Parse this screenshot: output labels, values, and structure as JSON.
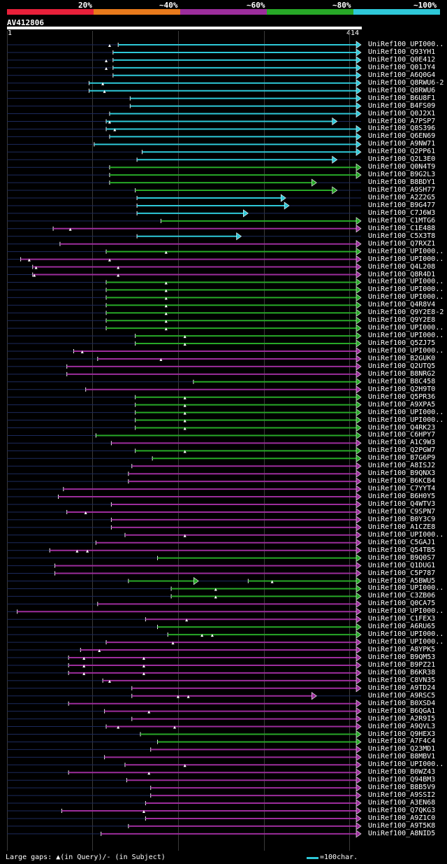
{
  "legend": {
    "labels": [
      "20%",
      "~40%",
      "~60%",
      "~80%",
      "~100%"
    ],
    "colors": [
      "#e8203a",
      "#e87a1c",
      "#9c2d9c",
      "#27a827",
      "#2ec8d8"
    ]
  },
  "query": {
    "name": "AV412806",
    "start": "1",
    "end": "414"
  },
  "footer": {
    "gaps": "Large gaps: ▲(in Query)/- (in Subject)",
    "scale": "=100char."
  },
  "hits": [
    {
      "label": "UniRef100_UPI000..",
      "start": 130,
      "end": 414,
      "color": "#2ec8d8",
      "arrow": true,
      "gaps": [
        120
      ]
    },
    {
      "label": "UniRef100_Q93YH1",
      "start": 124,
      "end": 414,
      "color": "#2ec8d8",
      "arrow": true,
      "gaps": []
    },
    {
      "label": "UniRef100_Q0E412",
      "start": 124,
      "end": 414,
      "color": "#2ec8d8",
      "arrow": true,
      "gaps": [
        116
      ]
    },
    {
      "label": "UniRef100_Q01JY4",
      "start": 124,
      "end": 414,
      "color": "#2ec8d8",
      "arrow": true,
      "gaps": [
        116
      ]
    },
    {
      "label": "UniRef100_A6Q0G4",
      "start": 124,
      "end": 414,
      "color": "#2ec8d8",
      "arrow": true,
      "gaps": []
    },
    {
      "label": "UniRef100_Q8RWU6-2",
      "start": 96,
      "end": 414,
      "color": "#2ec8d8",
      "arrow": true,
      "gaps": [
        112
      ]
    },
    {
      "label": "UniRef100_Q8RWU6",
      "start": 96,
      "end": 414,
      "color": "#2ec8d8",
      "arrow": true,
      "gaps": [
        114
      ]
    },
    {
      "label": "UniRef100_B6U8F1",
      "start": 144,
      "end": 414,
      "color": "#2ec8d8",
      "arrow": true,
      "gaps": []
    },
    {
      "label": "UniRef100_B4FS09",
      "start": 144,
      "end": 414,
      "color": "#2ec8d8",
      "arrow": true,
      "gaps": []
    },
    {
      "label": "UniRef100_Q0J2X1",
      "start": 120,
      "end": 414,
      "color": "#2ec8d8",
      "arrow": true,
      "gaps": []
    },
    {
      "label": "UniRef100_A7PSP7",
      "start": 116,
      "end": 386,
      "color": "#2ec8d8",
      "arrow": true,
      "gaps": [
        120
      ]
    },
    {
      "label": "UniRef100_Q8S396",
      "start": 116,
      "end": 414,
      "color": "#2ec8d8",
      "arrow": true,
      "gaps": [
        126
      ]
    },
    {
      "label": "UniRef100_Q6EN69",
      "start": 120,
      "end": 414,
      "color": "#2ec8d8",
      "arrow": true,
      "gaps": []
    },
    {
      "label": "UniRef100_A9NW71",
      "start": 102,
      "end": 414,
      "color": "#2ec8d8",
      "arrow": true,
      "gaps": []
    },
    {
      "label": "UniRef100_Q2PP61",
      "start": 158,
      "end": 414,
      "color": "#2ec8d8",
      "arrow": true,
      "gaps": []
    },
    {
      "label": "UniRef100_Q2L3E0",
      "start": 152,
      "end": 386,
      "color": "#2ec8d8",
      "arrow": true,
      "gaps": []
    },
    {
      "label": "UniRef100_Q0N4T9",
      "start": 120,
      "end": 414,
      "color": "#27a827",
      "arrow": true,
      "gaps": []
    },
    {
      "label": "UniRef100_B9G2L3",
      "start": 120,
      "end": 414,
      "color": "#27a827",
      "arrow": true,
      "gaps": []
    },
    {
      "label": "UniRef100_B8BDY1",
      "start": 120,
      "end": 362,
      "color": "#27a827",
      "arrow": true,
      "gaps": []
    },
    {
      "label": "UniRef100_A9SH77",
      "start": 150,
      "end": 386,
      "color": "#27a827",
      "arrow": true,
      "gaps": []
    },
    {
      "label": "UniRef100_A2Z2G5",
      "start": 152,
      "end": 326,
      "color": "#2ec8d8",
      "arrow": true,
      "gaps": []
    },
    {
      "label": "UniRef100_B9G477",
      "start": 152,
      "end": 330,
      "color": "#2ec8d8",
      "arrow": true,
      "gaps": []
    },
    {
      "label": "UniRef100_C7J6W3",
      "start": 152,
      "end": 282,
      "color": "#2ec8d8",
      "arrow": true,
      "gaps": []
    },
    {
      "label": "UniRef100_C1MTG6",
      "start": 180,
      "end": 414,
      "color": "#27a827",
      "arrow": true,
      "gaps": []
    },
    {
      "label": "UniRef100_C1E488",
      "start": 54,
      "end": 414,
      "color": "#9c2d9c",
      "arrow": true,
      "gaps": [
        74
      ]
    },
    {
      "label": "UniRef100_C5X3T8",
      "start": 152,
      "end": 274,
      "color": "#2ec8d8",
      "arrow": true,
      "gaps": []
    },
    {
      "label": "UniRef100_Q7RXZ1",
      "start": 62,
      "end": 414,
      "color": "#9c2d9c",
      "arrow": true,
      "gaps": []
    },
    {
      "label": "UniRef100_UPI000..",
      "start": 116,
      "end": 414,
      "color": "#27a827",
      "arrow": true,
      "gaps": [
        186
      ]
    },
    {
      "label": "UniRef100_UPI000..",
      "start": 16,
      "end": 414,
      "color": "#9c2d9c",
      "arrow": true,
      "gaps": [
        26,
        120
      ]
    },
    {
      "label": "UniRef100_Q4L208",
      "start": 30,
      "end": 414,
      "color": "#9c2d9c",
      "arrow": true,
      "gaps": [
        34,
        130
      ]
    },
    {
      "label": "UniRef100_Q8R4D1",
      "start": 30,
      "end": 414,
      "color": "#9c2d9c",
      "arrow": true,
      "gaps": [
        32,
        130
      ]
    },
    {
      "label": "UniRef100_UPI000..",
      "start": 116,
      "end": 414,
      "color": "#27a827",
      "arrow": true,
      "gaps": [
        186
      ]
    },
    {
      "label": "UniRef100_UPI000..",
      "start": 116,
      "end": 414,
      "color": "#27a827",
      "arrow": true,
      "gaps": [
        186
      ]
    },
    {
      "label": "UniRef100_UPI000..",
      "start": 116,
      "end": 414,
      "color": "#27a827",
      "arrow": true,
      "gaps": [
        186
      ]
    },
    {
      "label": "UniRef100_Q4R8V4",
      "start": 116,
      "end": 414,
      "color": "#27a827",
      "arrow": true,
      "gaps": [
        186
      ]
    },
    {
      "label": "UniRef100_Q9Y2E8-2",
      "start": 116,
      "end": 414,
      "color": "#27a827",
      "arrow": true,
      "gaps": [
        186
      ]
    },
    {
      "label": "UniRef100_Q9Y2E8",
      "start": 116,
      "end": 414,
      "color": "#27a827",
      "arrow": true,
      "gaps": [
        186
      ]
    },
    {
      "label": "UniRef100_UPI000..",
      "start": 116,
      "end": 414,
      "color": "#27a827",
      "arrow": true,
      "gaps": [
        186
      ]
    },
    {
      "label": "UniRef100_UPI000..",
      "start": 150,
      "end": 414,
      "color": "#27a827",
      "arrow": true,
      "gaps": [
        208
      ]
    },
    {
      "label": "UniRef100_Q5ZJ75",
      "start": 150,
      "end": 414,
      "color": "#27a827",
      "arrow": true,
      "gaps": [
        208
      ]
    },
    {
      "label": "UniRef100_UPI000..",
      "start": 78,
      "end": 414,
      "color": "#9c2d9c",
      "arrow": true,
      "gaps": [
        88
      ]
    },
    {
      "label": "UniRef100_B2GUK0",
      "start": 106,
      "end": 414,
      "color": "#9c2d9c",
      "arrow": true,
      "gaps": [
        180
      ]
    },
    {
      "label": "UniRef100_Q2UTQ5",
      "start": 70,
      "end": 414,
      "color": "#9c2d9c",
      "arrow": true,
      "gaps": []
    },
    {
      "label": "UniRef100_B8NRG2",
      "start": 70,
      "end": 414,
      "color": "#9c2d9c",
      "arrow": true,
      "gaps": []
    },
    {
      "label": "UniRef100_B8C458",
      "start": 218,
      "end": 414,
      "color": "#27a827",
      "arrow": true,
      "gaps": []
    },
    {
      "label": "UniRef100_Q2H9T0",
      "start": 92,
      "end": 414,
      "color": "#9c2d9c",
      "arrow": true,
      "gaps": []
    },
    {
      "label": "UniRef100_Q5PR36",
      "start": 150,
      "end": 414,
      "color": "#27a827",
      "arrow": true,
      "gaps": [
        208
      ]
    },
    {
      "label": "UniRef100_A9XPA5",
      "start": 150,
      "end": 414,
      "color": "#27a827",
      "arrow": true,
      "gaps": [
        208
      ]
    },
    {
      "label": "UniRef100_UPI000..",
      "start": 150,
      "end": 414,
      "color": "#27a827",
      "arrow": true,
      "gaps": [
        208
      ]
    },
    {
      "label": "UniRef100_UPI000..",
      "start": 150,
      "end": 414,
      "color": "#27a827",
      "arrow": true,
      "gaps": [
        208
      ]
    },
    {
      "label": "UniRef100_Q4RK23",
      "start": 150,
      "end": 414,
      "color": "#27a827",
      "arrow": true,
      "gaps": [
        208
      ]
    },
    {
      "label": "UniRef100_C6HPY7",
      "start": 104,
      "end": 414,
      "color": "#27a827",
      "arrow": true,
      "gaps": []
    },
    {
      "label": "UniRef100_A1C9W3",
      "start": 122,
      "end": 414,
      "color": "#9c2d9c",
      "arrow": true,
      "gaps": []
    },
    {
      "label": "UniRef100_Q2PGW7",
      "start": 150,
      "end": 414,
      "color": "#27a827",
      "arrow": true,
      "gaps": [
        208
      ]
    },
    {
      "label": "UniRef100_B7G6P9",
      "start": 170,
      "end": 414,
      "color": "#27a827",
      "arrow": true,
      "gaps": []
    },
    {
      "label": "UniRef100_A8ISJ2",
      "start": 146,
      "end": 414,
      "color": "#9c2d9c",
      "arrow": true,
      "gaps": []
    },
    {
      "label": "UniRef100_B9QNX3",
      "start": 142,
      "end": 414,
      "color": "#9c2d9c",
      "arrow": true,
      "gaps": []
    },
    {
      "label": "UniRef100_B6KCB4",
      "start": 142,
      "end": 414,
      "color": "#9c2d9c",
      "arrow": true,
      "gaps": []
    },
    {
      "label": "UniRef100_C7YYT4",
      "start": 66,
      "end": 414,
      "color": "#9c2d9c",
      "arrow": true,
      "gaps": []
    },
    {
      "label": "UniRef100_B6H0Y5",
      "start": 60,
      "end": 414,
      "color": "#9c2d9c",
      "arrow": true,
      "gaps": []
    },
    {
      "label": "UniRef100_Q4WTV3",
      "start": 122,
      "end": 414,
      "color": "#9c2d9c",
      "arrow": true,
      "gaps": []
    },
    {
      "label": "UniRef100_C9SPN7",
      "start": 70,
      "end": 414,
      "color": "#9c2d9c",
      "arrow": true,
      "gaps": [
        92
      ]
    },
    {
      "label": "UniRef100_B0Y3C9",
      "start": 122,
      "end": 414,
      "color": "#9c2d9c",
      "arrow": true,
      "gaps": []
    },
    {
      "label": "UniRef100_A1CZE8",
      "start": 122,
      "end": 414,
      "color": "#9c2d9c",
      "arrow": true,
      "gaps": []
    },
    {
      "label": "UniRef100_UPI000..",
      "start": 138,
      "end": 414,
      "color": "#9c2d9c",
      "arrow": true,
      "gaps": [
        208
      ]
    },
    {
      "label": "UniRef100_C5GAJ1",
      "start": 104,
      "end": 414,
      "color": "#9c2d9c",
      "arrow": true,
      "gaps": []
    },
    {
      "label": "UniRef100_Q54TB5",
      "start": 50,
      "end": 414,
      "color": "#9c2d9c",
      "arrow": true,
      "gaps": [
        82,
        94
      ]
    },
    {
      "label": "UniRef100_B9Q0S7",
      "start": 176,
      "end": 414,
      "color": "#27a827",
      "arrow": true,
      "gaps": []
    },
    {
      "label": "UniRef100_Q1DUG1",
      "start": 56,
      "end": 414,
      "color": "#9c2d9c",
      "arrow": true,
      "gaps": []
    },
    {
      "label": "UniRef100_C5P787",
      "start": 56,
      "end": 414,
      "color": "#9c2d9c",
      "arrow": true,
      "gaps": []
    },
    {
      "label": "UniRef100_A5BWU5",
      "start": 142,
      "end": 224,
      "color": "#27a827",
      "arrow": true,
      "gaps": [
        310
      ],
      "seg2": [
        282,
        414
      ]
    },
    {
      "label": "UniRef100_UPI000..",
      "start": 192,
      "end": 414,
      "color": "#27a827",
      "arrow": true,
      "gaps": [
        244
      ]
    },
    {
      "label": "UniRef100_C3ZB06",
      "start": 192,
      "end": 414,
      "color": "#27a827",
      "arrow": true,
      "gaps": [
        244
      ]
    },
    {
      "label": "UniRef100_Q0CA75",
      "start": 106,
      "end": 414,
      "color": "#9c2d9c",
      "arrow": true,
      "gaps": []
    },
    {
      "label": "UniRef100_UPI000..",
      "start": 12,
      "end": 414,
      "color": "#9c2d9c",
      "arrow": true,
      "gaps": []
    },
    {
      "label": "UniRef100_C1FEX3",
      "start": 162,
      "end": 414,
      "color": "#9c2d9c",
      "arrow": true,
      "gaps": [
        210
      ]
    },
    {
      "label": "UniRef100_A6RU65",
      "start": 176,
      "end": 414,
      "color": "#27a827",
      "arrow": true,
      "gaps": []
    },
    {
      "label": "UniRef100_UPI000..",
      "start": 188,
      "end": 414,
      "color": "#27a827",
      "arrow": true,
      "gaps": [
        228,
        240
      ]
    },
    {
      "label": "UniRef100_UPI000..",
      "start": 116,
      "end": 414,
      "color": "#9c2d9c",
      "arrow": true,
      "gaps": [
        194
      ]
    },
    {
      "label": "UniRef100_A8YPK5",
      "start": 86,
      "end": 414,
      "color": "#9c2d9c",
      "arrow": true,
      "gaps": [
        108
      ]
    },
    {
      "label": "UniRef100_B9QM53",
      "start": 72,
      "end": 414,
      "color": "#9c2d9c",
      "arrow": true,
      "gaps": [
        90,
        160
      ]
    },
    {
      "label": "UniRef100_B9PZ21",
      "start": 72,
      "end": 414,
      "color": "#9c2d9c",
      "arrow": true,
      "gaps": [
        90,
        160
      ]
    },
    {
      "label": "UniRef100_B6KR38",
      "start": 72,
      "end": 414,
      "color": "#9c2d9c",
      "arrow": true,
      "gaps": [
        90,
        160
      ]
    },
    {
      "label": "UniRef100_C8VN35",
      "start": 112,
      "end": 414,
      "color": "#9c2d9c",
      "arrow": true,
      "gaps": [
        120
      ]
    },
    {
      "label": "UniRef100_A9TD24",
      "start": 146,
      "end": 414,
      "color": "#9c2d9c",
      "arrow": true,
      "gaps": []
    },
    {
      "label": "UniRef100_A9RSC5",
      "start": 146,
      "end": 362,
      "color": "#9c2d9c",
      "arrow": true,
      "gaps": [
        200,
        212
      ]
    },
    {
      "label": "UniRef100_B0XSD4",
      "start": 72,
      "end": 414,
      "color": "#9c2d9c",
      "arrow": true,
      "gaps": []
    },
    {
      "label": "UniRef100_B6QGA1",
      "start": 114,
      "end": 414,
      "color": "#9c2d9c",
      "arrow": true,
      "gaps": [
        166
      ]
    },
    {
      "label": "UniRef100_A2R9I5",
      "start": 146,
      "end": 414,
      "color": "#9c2d9c",
      "arrow": true,
      "gaps": []
    },
    {
      "label": "UniRef100_A9QVL3",
      "start": 116,
      "end": 414,
      "color": "#9c2d9c",
      "arrow": true,
      "gaps": [
        130,
        196
      ]
    },
    {
      "label": "UniRef100_Q9HEX3",
      "start": 156,
      "end": 414,
      "color": "#27a827",
      "arrow": true,
      "gaps": []
    },
    {
      "label": "UniRef100_A7F4C4",
      "start": 176,
      "end": 414,
      "color": "#27a827",
      "arrow": true,
      "gaps": []
    },
    {
      "label": "UniRef100_Q23MD1",
      "start": 168,
      "end": 414,
      "color": "#9c2d9c",
      "arrow": true,
      "gaps": []
    },
    {
      "label": "UniRef100_B8MBV1",
      "start": 114,
      "end": 414,
      "color": "#9c2d9c",
      "arrow": true,
      "gaps": []
    },
    {
      "label": "UniRef100_UPI000..",
      "start": 138,
      "end": 414,
      "color": "#9c2d9c",
      "arrow": true,
      "gaps": [
        208
      ]
    },
    {
      "label": "UniRef100_B0WZ43",
      "start": 72,
      "end": 414,
      "color": "#9c2d9c",
      "arrow": true,
      "gaps": [
        166
      ]
    },
    {
      "label": "UniRef100_Q94BM3",
      "start": 140,
      "end": 414,
      "color": "#9c2d9c",
      "arrow": true,
      "gaps": []
    },
    {
      "label": "UniRef100_B8B5V9",
      "start": 168,
      "end": 414,
      "color": "#9c2d9c",
      "arrow": true,
      "gaps": []
    },
    {
      "label": "UniRef100_A9SSI2",
      "start": 168,
      "end": 414,
      "color": "#9c2d9c",
      "arrow": true,
      "gaps": []
    },
    {
      "label": "UniRef100_A3EN68",
      "start": 162,
      "end": 414,
      "color": "#9c2d9c",
      "arrow": true,
      "gaps": []
    },
    {
      "label": "UniRef100_Q7QKG3",
      "start": 64,
      "end": 414,
      "color": "#9c2d9c",
      "arrow": true,
      "gaps": [
        160
      ]
    },
    {
      "label": "UniRef100_A9Z1C0",
      "start": 162,
      "end": 414,
      "color": "#9c2d9c",
      "arrow": true,
      "gaps": []
    },
    {
      "label": "UniRef100_A9T5K8",
      "start": 142,
      "end": 414,
      "color": "#9c2d9c",
      "arrow": true,
      "gaps": []
    },
    {
      "label": "UniRef100_A8NID5",
      "start": 110,
      "end": 414,
      "color": "#9c2d9c",
      "arrow": true,
      "gaps": []
    }
  ]
}
